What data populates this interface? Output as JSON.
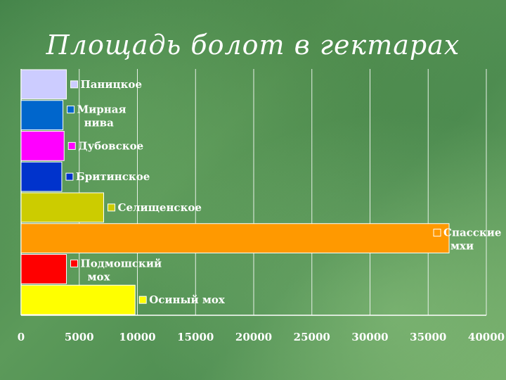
{
  "title": "Площадь болот в гектарах",
  "chart_data": {
    "type": "bar",
    "orientation": "horizontal",
    "title": "Площадь болот в гектарах",
    "xlabel": "",
    "ylabel": "",
    "xlim": [
      0,
      40000
    ],
    "xticks": [
      0,
      5000,
      10000,
      15000,
      20000,
      25000,
      30000,
      35000,
      40000
    ],
    "grid": true,
    "legend_position": "inline-right-of-bars",
    "series": [
      {
        "name": "Паницкое",
        "lines": [
          "Паницкое"
        ],
        "value": 3900,
        "color": "#ccccff"
      },
      {
        "name": "Мирная нива",
        "lines": [
          "Мирная",
          "нива"
        ],
        "value": 3600,
        "color": "#0066cc"
      },
      {
        "name": "Дубовское",
        "lines": [
          "Дубовское"
        ],
        "value": 3700,
        "color": "#ff00ff"
      },
      {
        "name": "Бритинское",
        "lines": [
          "Бритинское"
        ],
        "value": 3500,
        "color": "#0033cc"
      },
      {
        "name": "Селищенское",
        "lines": [
          "Селищенское"
        ],
        "value": 7100,
        "color": "#cccc00"
      },
      {
        "name": "Спасские мхи",
        "lines": [
          "Спасские",
          "мхи"
        ],
        "value": 36800,
        "color": "#ff9900"
      },
      {
        "name": "Подмошский мох",
        "lines": [
          "Подмошский",
          "мох"
        ],
        "value": 3900,
        "color": "#ff0000"
      },
      {
        "name": "Осиный мох",
        "lines": [
          "Осиный мох"
        ],
        "value": 9800,
        "color": "#ffff00"
      }
    ]
  }
}
